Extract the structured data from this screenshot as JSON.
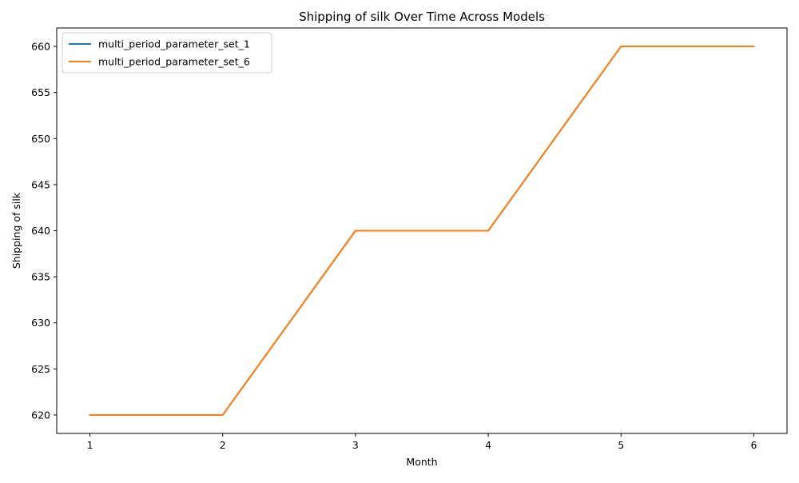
{
  "chart_data": {
    "type": "line",
    "title": "Shipping of silk Over Time Across Models",
    "xlabel": "Month",
    "ylabel": "Shipping of silk",
    "x": [
      1,
      2,
      3,
      4,
      5,
      6
    ],
    "xticks": [
      "1",
      "2",
      "3",
      "4",
      "5",
      "6"
    ],
    "yticks": [
      "620",
      "625",
      "630",
      "635",
      "640",
      "645",
      "650",
      "655",
      "660"
    ],
    "xlim": [
      0.75,
      6.25
    ],
    "ylim": [
      618,
      662
    ],
    "grid": false,
    "legend_position": "top-left",
    "series": [
      {
        "name": "multi_period_parameter_set_1",
        "color": "#1f77b4",
        "values": [
          620,
          620,
          640,
          640,
          660,
          660
        ]
      },
      {
        "name": "multi_period_parameter_set_6",
        "color": "#ff7f0e",
        "values": [
          620,
          620,
          640,
          640,
          660,
          660
        ]
      }
    ]
  }
}
